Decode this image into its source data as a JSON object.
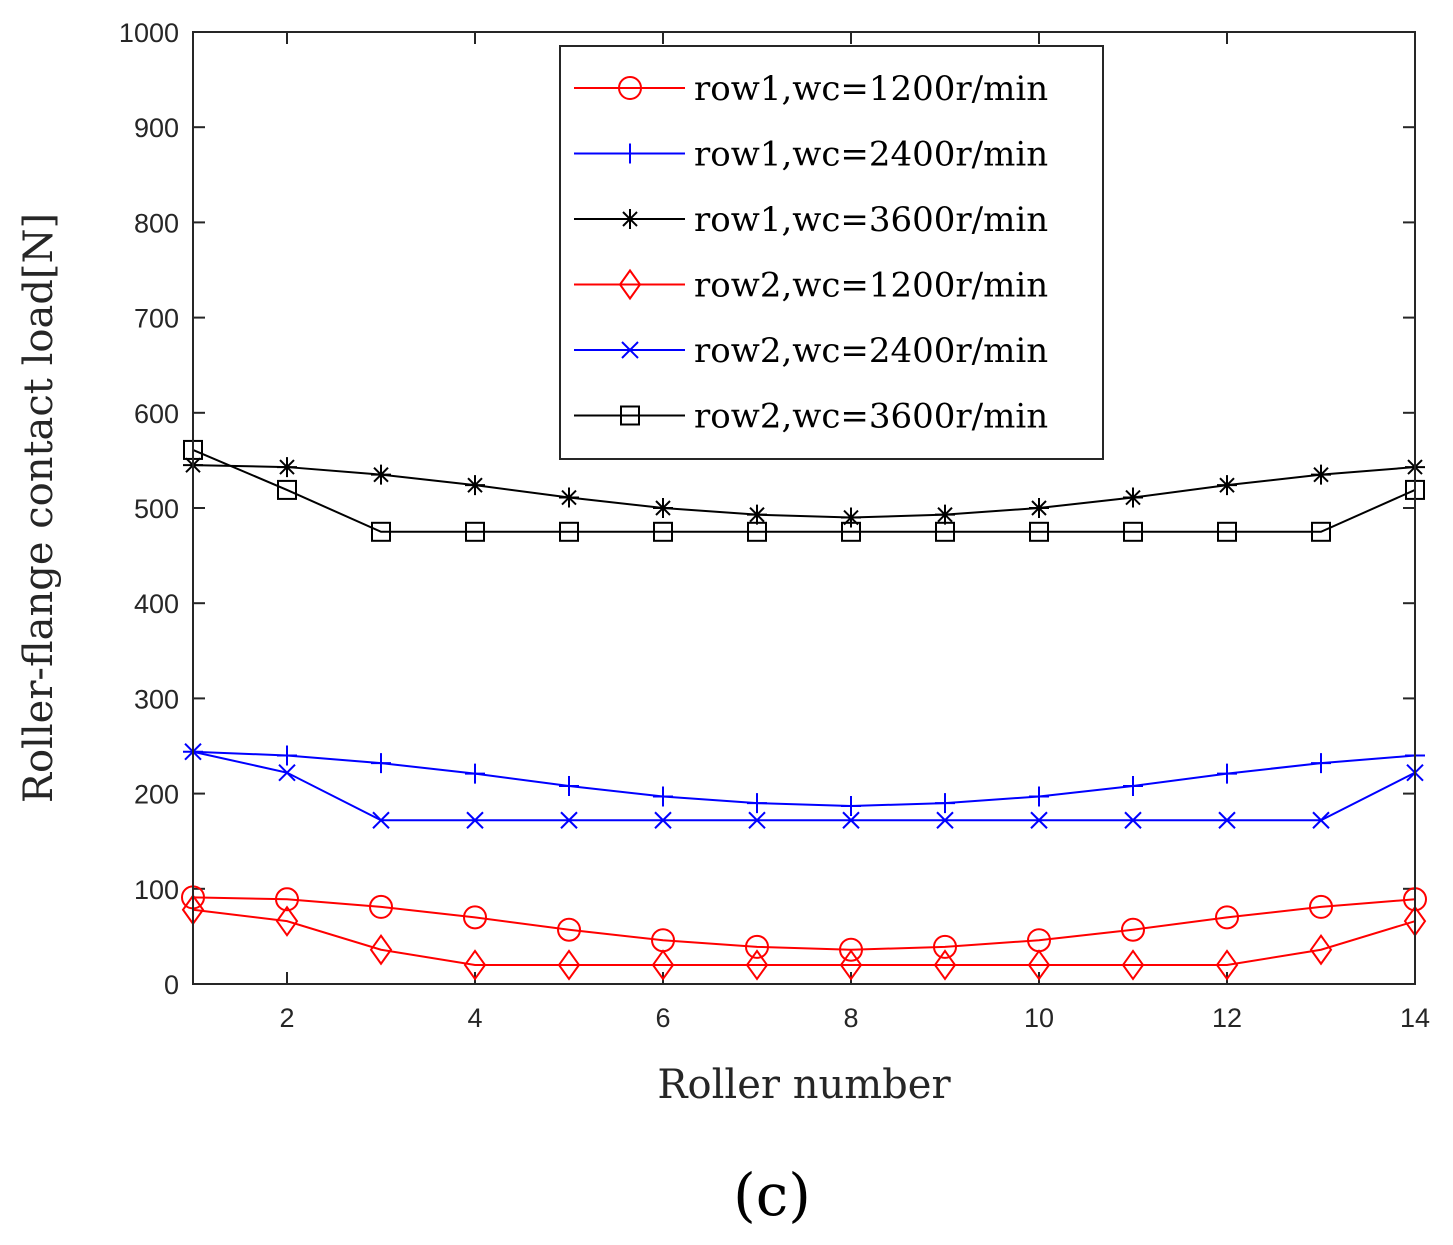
{
  "chart_data": {
    "type": "line",
    "xlabel": "Roller number",
    "ylabel": "Roller-flange contact load[N]",
    "panel_label": "(c)",
    "xlim": [
      1,
      14
    ],
    "ylim": [
      0,
      1000
    ],
    "xticks": [
      2,
      4,
      6,
      8,
      10,
      12,
      14
    ],
    "yticks": [
      0,
      100,
      200,
      300,
      400,
      500,
      600,
      700,
      800,
      900,
      1000
    ],
    "grid": false,
    "legend_position": "top-right",
    "x": [
      1,
      2,
      3,
      4,
      5,
      6,
      7,
      8,
      9,
      10,
      11,
      12,
      13,
      14
    ],
    "series": [
      {
        "name": "row1,wc=1200r/min",
        "color": "#ff0000",
        "marker": "circle",
        "values": [
          91,
          89,
          81,
          70,
          57,
          46,
          39,
          36,
          39,
          46,
          57,
          70,
          81,
          89
        ]
      },
      {
        "name": "row1,wc=2400r/min",
        "color": "#0000ff",
        "marker": "plus",
        "values": [
          244,
          240,
          232,
          221,
          208,
          197,
          190,
          187,
          190,
          197,
          208,
          221,
          232,
          240
        ]
      },
      {
        "name": "row1,wc=3600r/min",
        "color": "#000000",
        "marker": "asterisk",
        "values": [
          545,
          543,
          535,
          524,
          511,
          500,
          493,
          490,
          493,
          500,
          511,
          524,
          535,
          543
        ]
      },
      {
        "name": "row2,wc=1200r/min",
        "color": "#ff0000",
        "marker": "diamond",
        "values": [
          78,
          66,
          36,
          20,
          20,
          20,
          20,
          20,
          20,
          20,
          20,
          20,
          36,
          66
        ]
      },
      {
        "name": "row2,wc=2400r/min",
        "color": "#0000ff",
        "marker": "x",
        "values": [
          244,
          222,
          172,
          172,
          172,
          172,
          172,
          172,
          172,
          172,
          172,
          172,
          172,
          222
        ]
      },
      {
        "name": "row2,wc=3600r/min",
        "color": "#000000",
        "marker": "square",
        "values": [
          561,
          519,
          475,
          475,
          475,
          475,
          475,
          475,
          475,
          475,
          475,
          475,
          475,
          519
        ]
      }
    ]
  }
}
